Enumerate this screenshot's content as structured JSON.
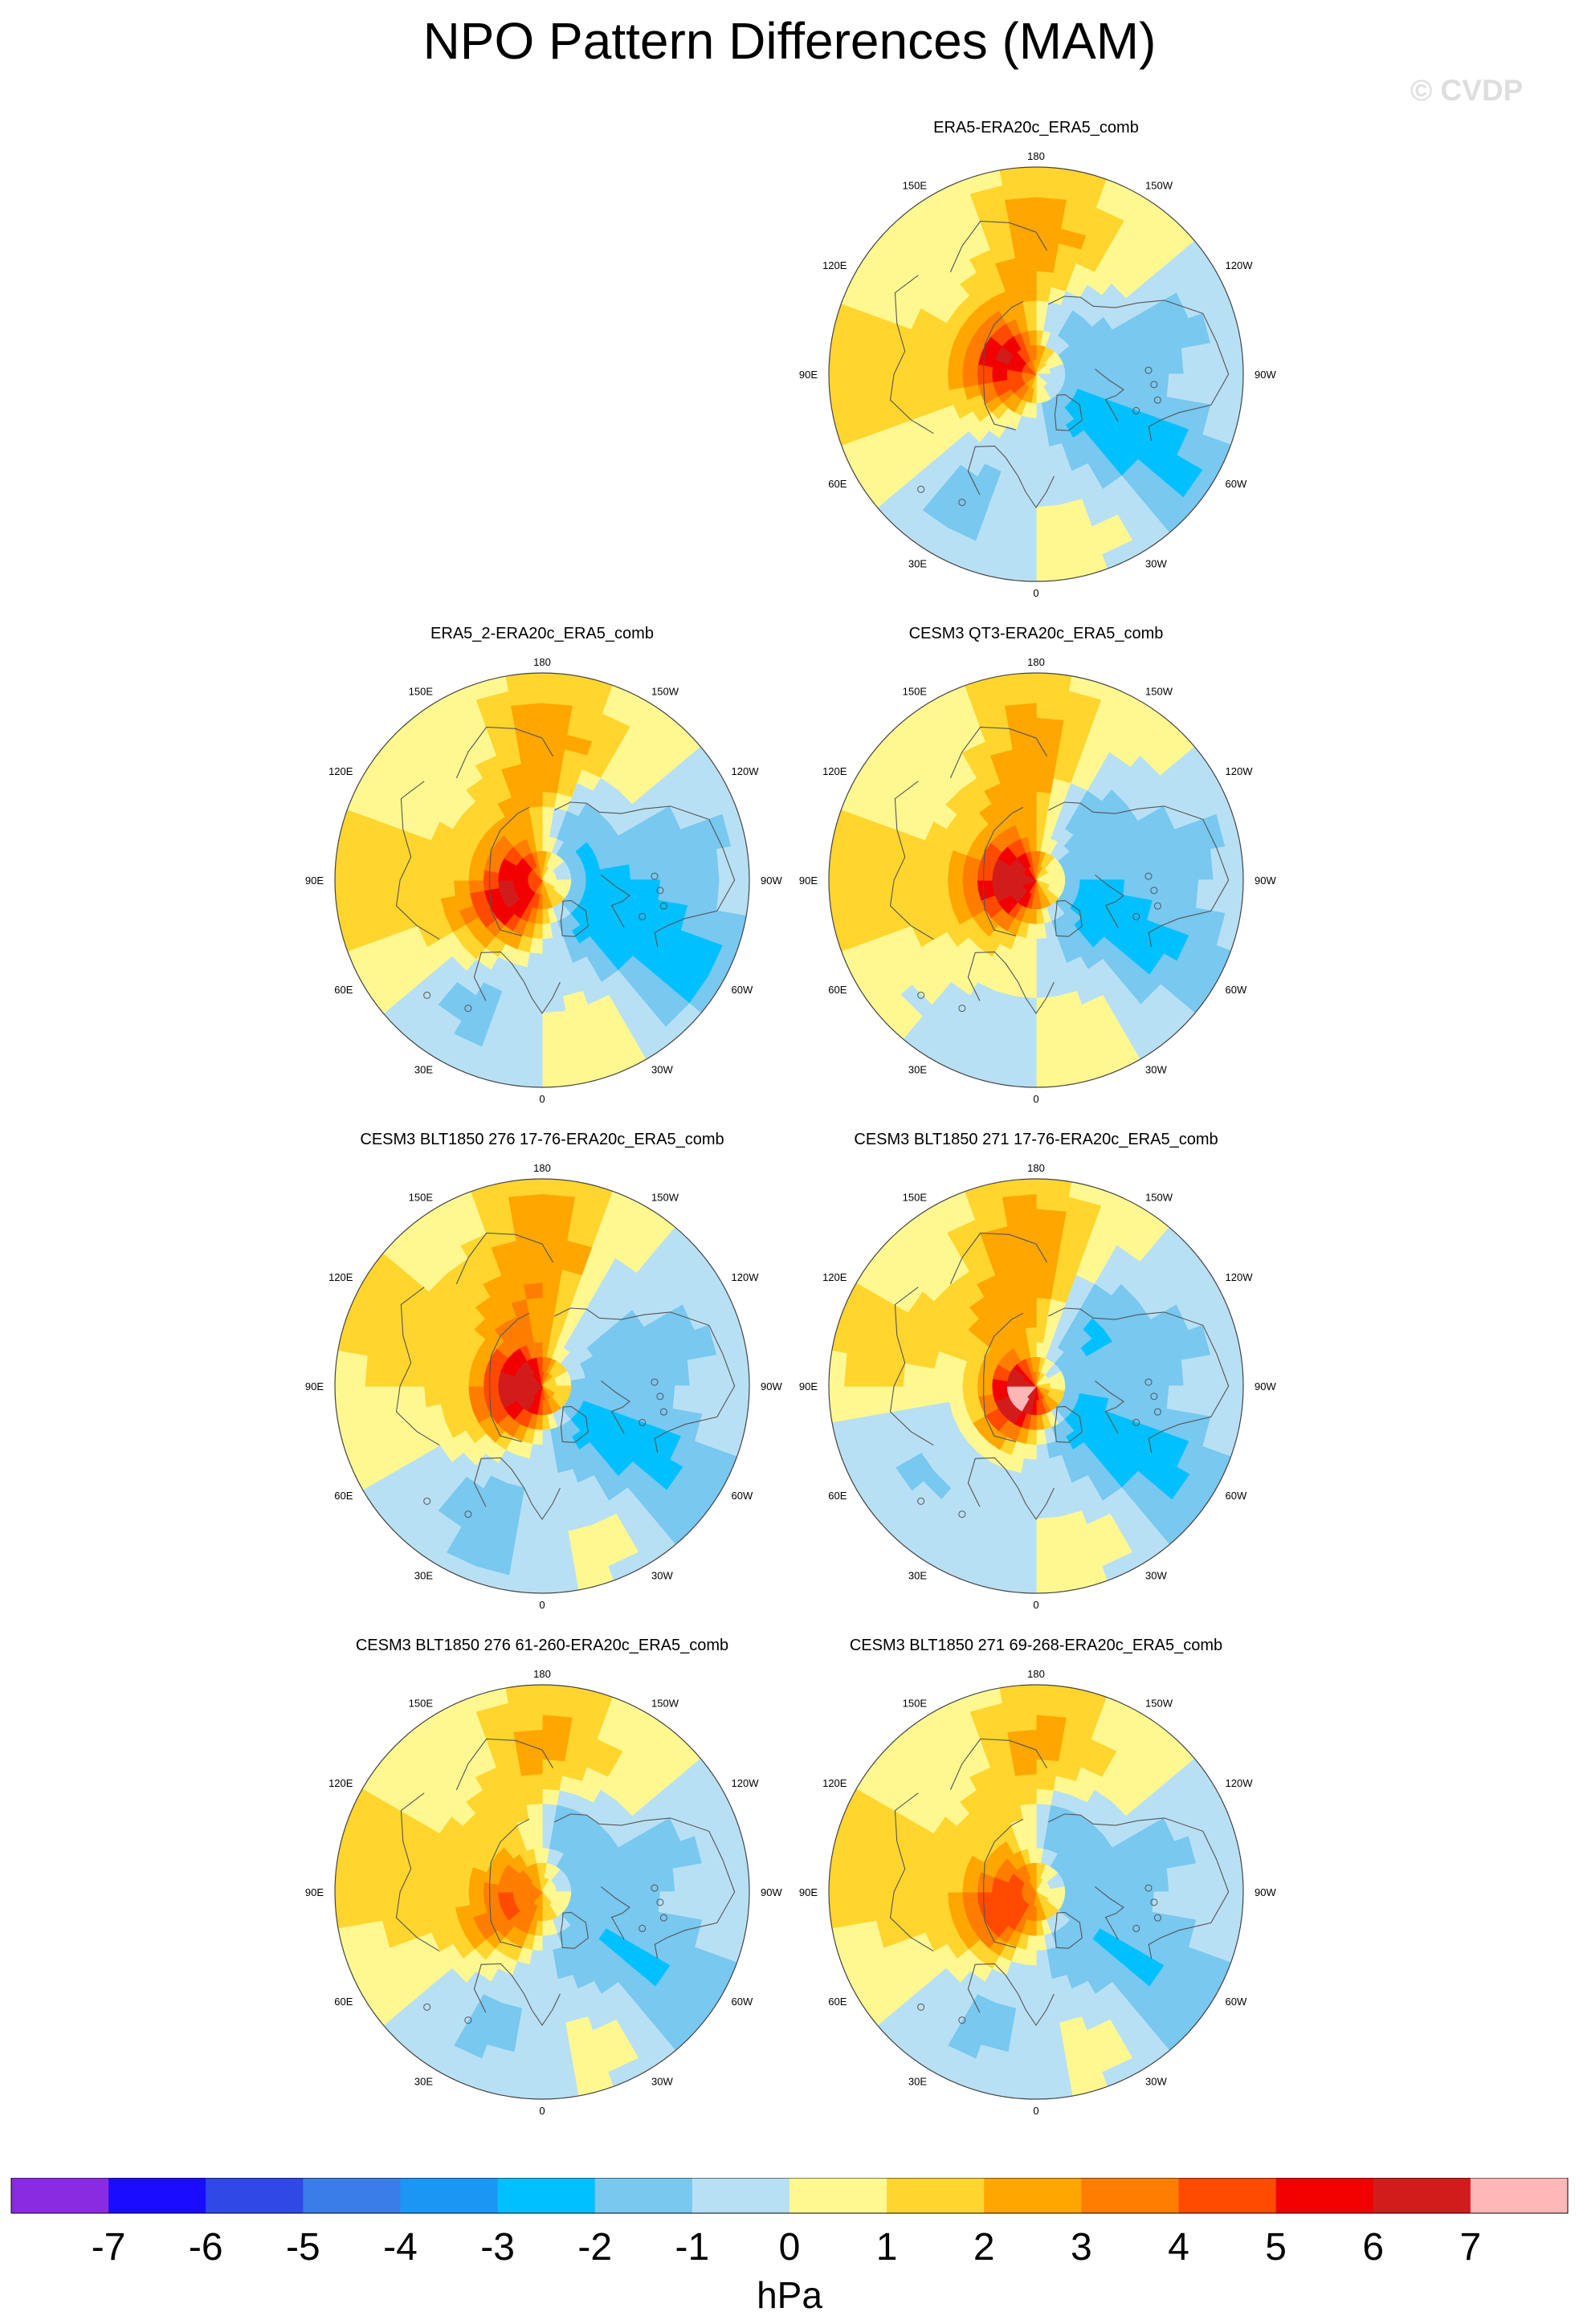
{
  "title": "NPO Pattern Differences (MAM)",
  "watermark": "© CVDP",
  "colors": {
    "neg7": "#8a2be2",
    "neg6": "#1a0dff",
    "neg5": "#2f48e6",
    "neg4": "#3a7de8",
    "neg3": "#1c96f5",
    "neg2": "#00c0ff",
    "neg1": "#78c8f0",
    "zero_neg": "#b8e0f4",
    "zero_pos": "#fff891",
    "pos1": "#ffd52e",
    "pos2": "#ffa600",
    "pos3": "#ff7d00",
    "pos4": "#ff4a00",
    "pos5": "#f20000",
    "pos6": "#d21c1c",
    "pos7": "#ffb6b6",
    "coast": "#555555"
  },
  "chart_data": {
    "type": "heatmap",
    "projection": "polar-stereographic-north",
    "units": "hPa",
    "colorbar": {
      "levels": [
        -7,
        -6,
        -5,
        -4,
        -3,
        -2,
        -1,
        0,
        1,
        2,
        3,
        4,
        5,
        6,
        7
      ],
      "labels": [
        "-7",
        "-6",
        "-5",
        "-4",
        "-3",
        "-2",
        "-1",
        "0",
        "1",
        "2",
        "3",
        "4",
        "5",
        "6",
        "7"
      ],
      "unit_label": "hPa",
      "colors": [
        "#8a2be2",
        "#1a0dff",
        "#2f48e6",
        "#3a7de8",
        "#1c96f5",
        "#00c0ff",
        "#78c8f0",
        "#b8e0f4",
        "#fff891",
        "#ffd52e",
        "#ffa600",
        "#ff7d00",
        "#ff4a00",
        "#f20000",
        "#d21c1c",
        "#ffb6b6"
      ]
    },
    "longitude_labels": [
      "180",
      "150E",
      "120E",
      "90E",
      "60E",
      "30E",
      "0",
      "30W",
      "60W",
      "90W",
      "120W",
      "150W"
    ],
    "panels": [
      {
        "title": "ERA5-ERA20c_ERA5_comb",
        "features": [
          {
            "kind": "high",
            "lon": 180,
            "colat": 40,
            "amp": 2.6,
            "sx": 14,
            "sy": 30
          },
          {
            "kind": "high",
            "lon": 100,
            "colat": 12,
            "amp": 4.6,
            "sx": 11,
            "sy": 11
          },
          {
            "kind": "low",
            "lon": 205,
            "colat": 22,
            "amp": -2.2,
            "sx": 8,
            "sy": 10
          },
          {
            "kind": "low",
            "lon": 305,
            "colat": 42,
            "amp": -2.6,
            "sx": 12,
            "sy": 30
          },
          {
            "kind": "low",
            "lon": 250,
            "colat": 35,
            "amp": -1.3,
            "sx": 10,
            "sy": 30
          },
          {
            "kind": "low",
            "lon": 30,
            "colat": 40,
            "amp": -1.2,
            "sx": 10,
            "sy": 28
          },
          {
            "kind": "high",
            "lon": 90,
            "colat": 55,
            "amp": 1.3,
            "sx": 20,
            "sy": 60
          }
        ]
      },
      {
        "title": "ERA5_2-ERA20c_ERA5_comb",
        "features": [
          {
            "kind": "high",
            "lon": 180,
            "colat": 40,
            "amp": 2.6,
            "sx": 14,
            "sy": 30
          },
          {
            "kind": "high",
            "lon": 60,
            "colat": 12,
            "amp": 5.6,
            "sx": 12,
            "sy": 12
          },
          {
            "kind": "low",
            "lon": 210,
            "colat": 23,
            "amp": -2.6,
            "sx": 8,
            "sy": 10
          },
          {
            "kind": "low",
            "lon": 300,
            "colat": 40,
            "amp": -3.0,
            "sx": 12,
            "sy": 30
          },
          {
            "kind": "low",
            "lon": 255,
            "colat": 35,
            "amp": -1.4,
            "sx": 10,
            "sy": 30
          },
          {
            "kind": "low",
            "lon": 30,
            "colat": 42,
            "amp": -1.0,
            "sx": 10,
            "sy": 25
          },
          {
            "kind": "high",
            "lon": 90,
            "colat": 55,
            "amp": 1.3,
            "sx": 20,
            "sy": 60
          }
        ]
      },
      {
        "title": "CESM3 QT3-ERA20c_ERA5_comb",
        "features": [
          {
            "kind": "high",
            "lon": 175,
            "colat": 40,
            "amp": 2.6,
            "sx": 14,
            "sy": 30
          },
          {
            "kind": "high",
            "lon": 80,
            "colat": 8,
            "amp": 5.6,
            "sx": 12,
            "sy": 12
          },
          {
            "kind": "low",
            "lon": 215,
            "colat": 28,
            "amp": -1.8,
            "sx": 9,
            "sy": 15
          },
          {
            "kind": "low",
            "lon": 300,
            "colat": 40,
            "amp": -2.4,
            "sx": 12,
            "sy": 30
          },
          {
            "kind": "low",
            "lon": 255,
            "colat": 35,
            "amp": -1.3,
            "sx": 10,
            "sy": 30
          },
          {
            "kind": "high",
            "lon": 90,
            "colat": 55,
            "amp": 1.3,
            "sx": 20,
            "sy": 60
          }
        ]
      },
      {
        "title": "CESM3 BLT1850 276 17-76-ERA20c_ERA5_comb",
        "features": [
          {
            "kind": "high",
            "lon": 180,
            "colat": 40,
            "amp": 2.8,
            "sx": 14,
            "sy": 30
          },
          {
            "kind": "high",
            "lon": 70,
            "colat": 6,
            "amp": 6.2,
            "sx": 13,
            "sy": 13
          },
          {
            "kind": "low",
            "lon": 215,
            "colat": 30,
            "amp": -1.3,
            "sx": 9,
            "sy": 18
          },
          {
            "kind": "low",
            "lon": 305,
            "colat": 40,
            "amp": -2.4,
            "sx": 12,
            "sy": 30
          },
          {
            "kind": "low",
            "lon": 250,
            "colat": 35,
            "amp": -1.2,
            "sx": 10,
            "sy": 30
          },
          {
            "kind": "low",
            "lon": 20,
            "colat": 45,
            "amp": -1.2,
            "sx": 12,
            "sy": 25
          },
          {
            "kind": "high",
            "lon": 120,
            "colat": 55,
            "amp": 1.3,
            "sx": 20,
            "sy": 60
          }
        ]
      },
      {
        "title": "CESM3 BLT1850 271 17-76-ERA20c_ERA5_comb",
        "features": [
          {
            "kind": "high",
            "lon": 175,
            "colat": 40,
            "amp": 2.8,
            "sx": 14,
            "sy": 30
          },
          {
            "kind": "high",
            "lon": 50,
            "colat": 6,
            "amp": 7.3,
            "sx": 11,
            "sy": 11
          },
          {
            "kind": "low",
            "lon": 215,
            "colat": 28,
            "amp": -2.2,
            "sx": 9,
            "sy": 15
          },
          {
            "kind": "low",
            "lon": 305,
            "colat": 40,
            "amp": -2.6,
            "sx": 12,
            "sy": 30
          },
          {
            "kind": "low",
            "lon": 250,
            "colat": 35,
            "amp": -1.3,
            "sx": 10,
            "sy": 30
          },
          {
            "kind": "low",
            "lon": 60,
            "colat": 42,
            "amp": -1.2,
            "sx": 14,
            "sy": 25
          },
          {
            "kind": "high",
            "lon": 110,
            "colat": 55,
            "amp": 1.2,
            "sx": 20,
            "sy": 60
          }
        ]
      },
      {
        "title": "CESM3 BLT1850 276 61-260-ERA20c_ERA5_comb",
        "features": [
          {
            "kind": "high",
            "lon": 180,
            "colat": 42,
            "amp": 2.4,
            "sx": 14,
            "sy": 30
          },
          {
            "kind": "high",
            "lon": 60,
            "colat": 12,
            "amp": 3.6,
            "sx": 12,
            "sy": 13
          },
          {
            "kind": "low",
            "lon": 195,
            "colat": 24,
            "amp": -3.2,
            "sx": 10,
            "sy": 11
          },
          {
            "kind": "low",
            "lon": 305,
            "colat": 42,
            "amp": -2.2,
            "sx": 12,
            "sy": 28
          },
          {
            "kind": "low",
            "lon": 250,
            "colat": 35,
            "amp": -1.1,
            "sx": 10,
            "sy": 30
          },
          {
            "kind": "low",
            "lon": 20,
            "colat": 40,
            "amp": -1.0,
            "sx": 12,
            "sy": 25
          },
          {
            "kind": "high",
            "lon": 100,
            "colat": 55,
            "amp": 1.3,
            "sx": 20,
            "sy": 60
          }
        ]
      },
      {
        "title": "CESM3 BLT1850 271 69-268-ERA20c_ERA5_comb",
        "features": [
          {
            "kind": "high",
            "lon": 180,
            "colat": 42,
            "amp": 2.4,
            "sx": 14,
            "sy": 30
          },
          {
            "kind": "high",
            "lon": 60,
            "colat": 12,
            "amp": 4.4,
            "sx": 12,
            "sy": 13
          },
          {
            "kind": "low",
            "lon": 195,
            "colat": 24,
            "amp": -3.2,
            "sx": 10,
            "sy": 11
          },
          {
            "kind": "low",
            "lon": 305,
            "colat": 42,
            "amp": -2.2,
            "sx": 12,
            "sy": 28
          },
          {
            "kind": "low",
            "lon": 250,
            "colat": 35,
            "amp": -1.1,
            "sx": 10,
            "sy": 30
          },
          {
            "kind": "low",
            "lon": 20,
            "colat": 40,
            "amp": -1.0,
            "sx": 12,
            "sy": 25
          },
          {
            "kind": "high",
            "lon": 100,
            "colat": 55,
            "amp": 1.3,
            "sx": 20,
            "sy": 60
          }
        ]
      }
    ]
  }
}
